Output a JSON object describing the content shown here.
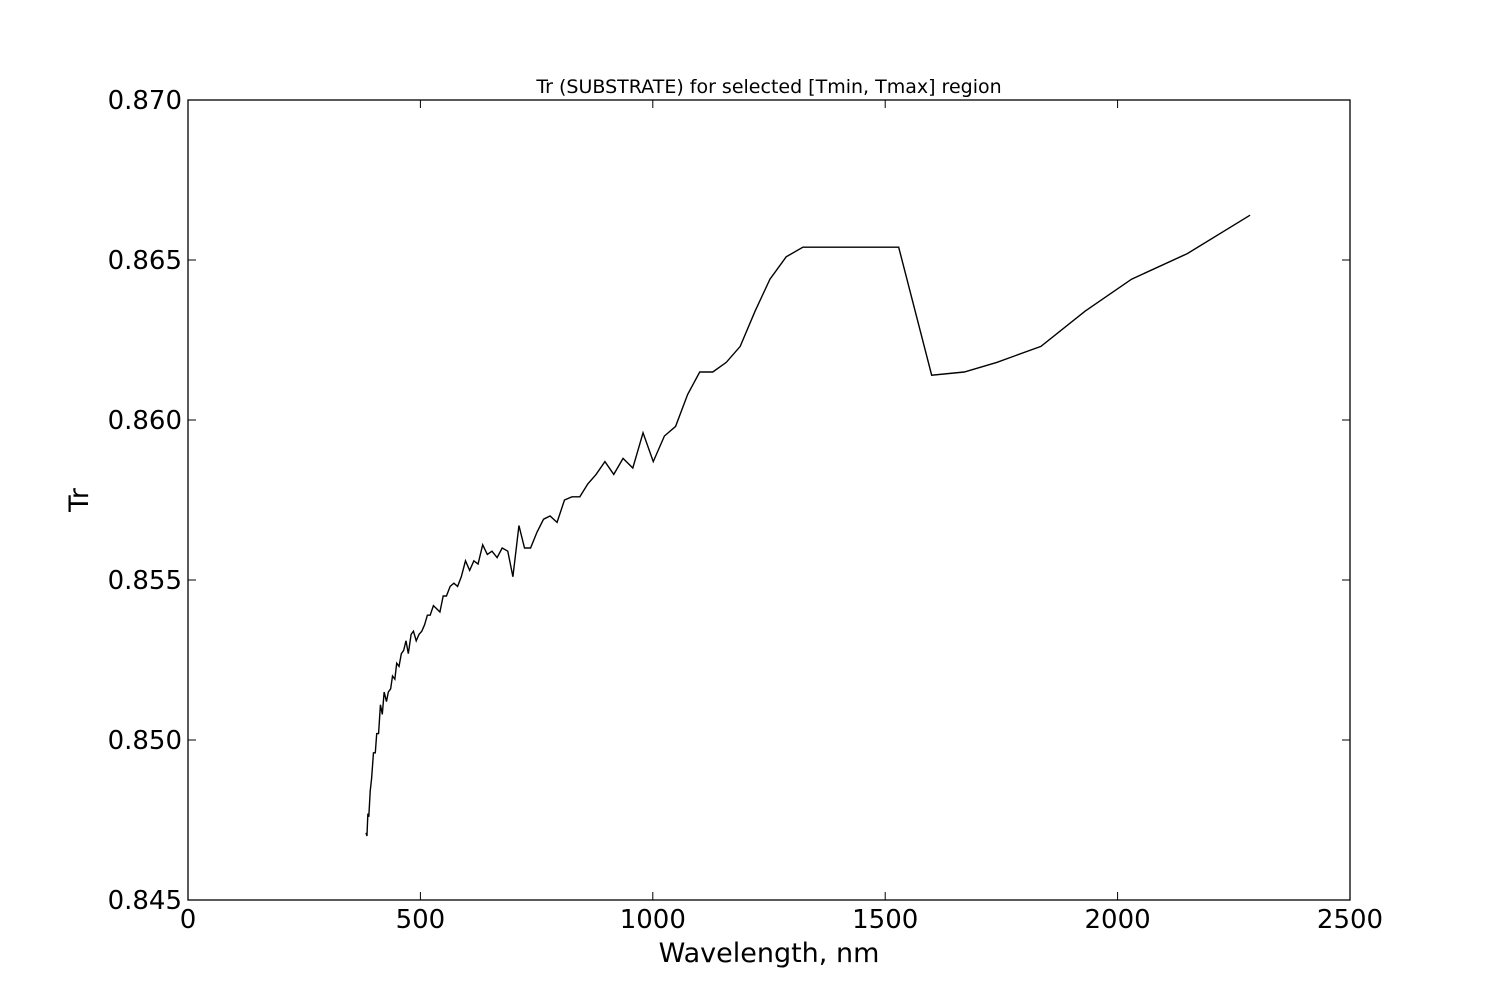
{
  "chart_data": {
    "type": "line",
    "title": "Tr (SUBSTRATE) for selected [Tmin, Tmax] region",
    "xlabel": "Wavelength, nm",
    "ylabel": "Tr",
    "xlim": [
      0,
      2500
    ],
    "ylim": [
      0.845,
      0.87
    ],
    "xticks": [
      0,
      500,
      1000,
      1500,
      2000,
      2500
    ],
    "xtick_labels": [
      "0",
      "500",
      "1000",
      "1500",
      "2000",
      "2500"
    ],
    "yticks": [
      0.845,
      0.85,
      0.855,
      0.86,
      0.865,
      0.87
    ],
    "ytick_labels": [
      "0.845",
      "0.850",
      "0.855",
      "0.860",
      "0.865",
      "0.870"
    ],
    "grid": false,
    "line_color": "#000000",
    "series": [
      {
        "x": [
          383,
          385,
          387,
          389,
          392,
          395,
          399,
          403,
          406,
          410,
          414,
          418,
          422,
          427,
          431,
          436,
          440,
          445,
          449,
          454,
          459,
          464,
          469,
          474,
          480,
          485,
          491,
          497,
          503,
          509,
          515,
          521,
          528,
          535,
          542,
          549,
          556,
          564,
          572,
          580,
          588,
          597,
          606,
          615,
          624,
          634,
          644,
          654,
          665,
          676,
          688,
          699,
          712,
          724,
          737,
          751,
          765,
          779,
          794,
          810,
          826,
          843,
          860,
          878,
          897,
          916,
          936,
          957,
          979,
          1001,
          1025,
          1049,
          1075,
          1101,
          1129,
          1158,
          1188,
          1220,
          1252,
          1287,
          1323,
          1360,
          1400,
          1441,
          1484,
          1529,
          1600,
          1670,
          1740,
          1835,
          1930,
          2030,
          2150,
          2285
        ],
        "y": [
          0.8471,
          0.847,
          0.8477,
          0.8476,
          0.8484,
          0.8488,
          0.8496,
          0.8496,
          0.8502,
          0.8502,
          0.8511,
          0.8508,
          0.8515,
          0.8512,
          0.8515,
          0.8516,
          0.852,
          0.8519,
          0.8524,
          0.8523,
          0.8527,
          0.8528,
          0.8531,
          0.8527,
          0.8533,
          0.8534,
          0.8531,
          0.8533,
          0.8534,
          0.8536,
          0.8539,
          0.8539,
          0.8542,
          0.8541,
          0.854,
          0.8545,
          0.8545,
          0.8548,
          0.8549,
          0.8548,
          0.8551,
          0.8556,
          0.8553,
          0.8556,
          0.8555,
          0.8561,
          0.8558,
          0.8559,
          0.8557,
          0.856,
          0.8559,
          0.8551,
          0.8567,
          0.856,
          0.856,
          0.8565,
          0.8569,
          0.857,
          0.8568,
          0.8575,
          0.8576,
          0.8576,
          0.858,
          0.8583,
          0.8587,
          0.8583,
          0.8588,
          0.8585,
          0.8596,
          0.8587,
          0.8595,
          0.8598,
          0.8608,
          0.8615,
          0.8615,
          0.8618,
          0.8623,
          0.8634,
          0.8644,
          0.8651,
          0.8654,
          0.8654,
          0.8654,
          0.8654,
          0.8654,
          0.8654,
          0.8614,
          0.8615,
          0.8618,
          0.8623,
          0.8634,
          0.8644,
          0.8652,
          0.8664
        ]
      }
    ]
  }
}
